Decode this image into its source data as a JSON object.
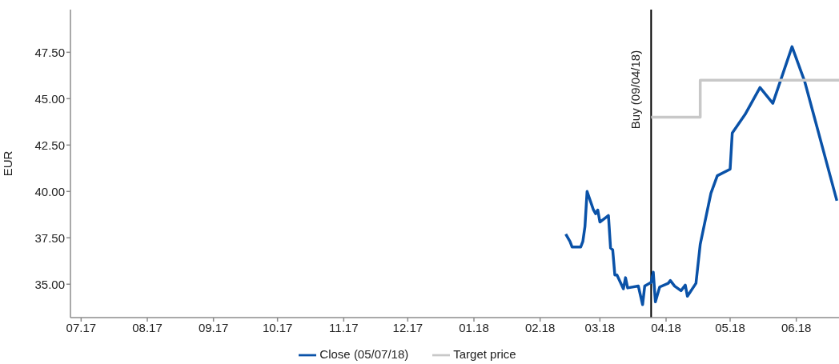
{
  "chart_data": {
    "type": "line",
    "ylabel": "EUR",
    "xlim": [
      "2017-07-11",
      "2018-07-06"
    ],
    "xticks": [
      {
        "value": "2017-07-16",
        "label": "07.17"
      },
      {
        "value": "2017-08-16",
        "label": "08.17"
      },
      {
        "value": "2017-09-16",
        "label": "09.17"
      },
      {
        "value": "2017-10-16",
        "label": "10.17"
      },
      {
        "value": "2017-11-16",
        "label": "11.17"
      },
      {
        "value": "2017-12-16",
        "label": "12.17"
      },
      {
        "value": "2018-01-16",
        "label": "01.18"
      },
      {
        "value": "2018-02-16",
        "label": "02.18"
      },
      {
        "value": "2018-03-16",
        "label": "03.18"
      },
      {
        "value": "2018-04-16",
        "label": "04.18"
      },
      {
        "value": "2018-05-16",
        "label": "05.18"
      },
      {
        "value": "2018-06-16",
        "label": "06.18"
      }
    ],
    "ylim": [
      33.2,
      49.8
    ],
    "yticks": [
      {
        "value": 35,
        "label": "35.00"
      },
      {
        "value": 37.5,
        "label": "37.50"
      },
      {
        "value": 40,
        "label": "40.00"
      },
      {
        "value": 42.5,
        "label": "42.50"
      },
      {
        "value": 45,
        "label": "45.00"
      },
      {
        "value": 47.5,
        "label": "47.50"
      }
    ],
    "grid": false,
    "legend": "bottom",
    "marker": "none",
    "ref_lines": [
      {
        "axis": "x",
        "value": "2018-04-09",
        "label": "Buy (09/04/18)",
        "color": "#000000"
      }
    ],
    "series": [
      {
        "name": "Close (05/07/18)",
        "type": "line",
        "color": "#0a52a8",
        "x": [
          "2018-02-28",
          "2018-03-02",
          "2018-03-03",
          "2018-03-07",
          "2018-03-08",
          "2018-03-09",
          "2018-03-10",
          "2018-03-13",
          "2018-03-14",
          "2018-03-15",
          "2018-03-16",
          "2018-03-20",
          "2018-03-21",
          "2018-03-22",
          "2018-03-23",
          "2018-03-24",
          "2018-03-27",
          "2018-03-28",
          "2018-03-29",
          "2018-04-03",
          "2018-04-05",
          "2018-04-06",
          "2018-04-09",
          "2018-04-10",
          "2018-04-11",
          "2018-04-13",
          "2018-04-17",
          "2018-04-18",
          "2018-04-20",
          "2018-04-23",
          "2018-04-25",
          "2018-04-26",
          "2018-04-30",
          "2018-05-02",
          "2018-05-07",
          "2018-05-10",
          "2018-05-16",
          "2018-05-17",
          "2018-05-23",
          "2018-05-30",
          "2018-06-05",
          "2018-06-14",
          "2018-06-20",
          "2018-07-05"
        ],
        "values": [
          37.7,
          37.3,
          37.0,
          37.0,
          37.3,
          38.1,
          40.0,
          39.0,
          38.8,
          39.0,
          38.35,
          38.7,
          36.95,
          36.85,
          35.5,
          35.5,
          34.75,
          35.35,
          34.8,
          34.9,
          33.9,
          34.9,
          35.1,
          35.65,
          34.05,
          34.85,
          35.05,
          35.2,
          34.9,
          34.65,
          34.95,
          34.35,
          35.05,
          37.15,
          39.9,
          40.85,
          41.2,
          43.15,
          44.15,
          45.6,
          44.75,
          47.8,
          45.9,
          39.5
        ]
      },
      {
        "name": "Target price",
        "type": "step",
        "color": "#c8c8c8",
        "x": [
          "2018-04-09",
          "2018-05-02",
          "2018-07-06"
        ],
        "values": [
          44.0,
          46.0,
          46.0
        ]
      }
    ]
  }
}
